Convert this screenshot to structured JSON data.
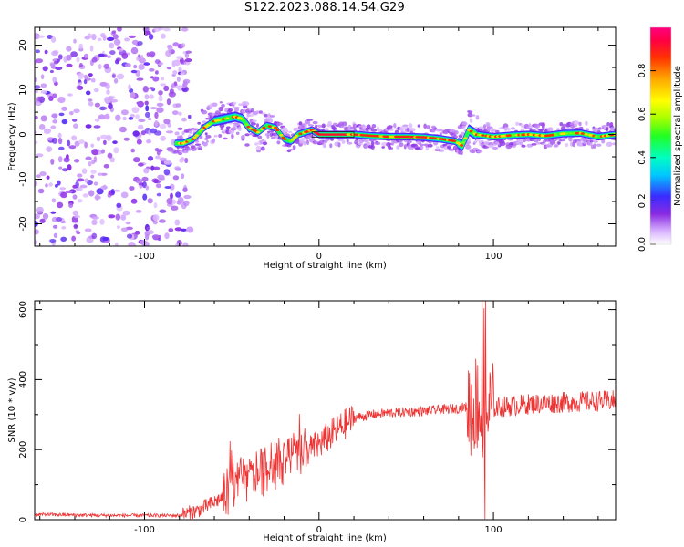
{
  "title": "S122.2023.088.14.54.G29",
  "chart_data": [
    {
      "type": "heatmap",
      "xlabel": "Height of straight line (km)",
      "ylabel": "Frequency (Hz)",
      "xlim": [
        -163,
        170
      ],
      "ylim": [
        -25,
        24
      ],
      "xticks": [
        -100,
        0,
        100
      ],
      "yticks": [
        -20,
        -10,
        0,
        10,
        20
      ],
      "colorbar": {
        "label": "Normalized spectral amplitude",
        "range": [
          0,
          1
        ],
        "ticks": [
          0.0,
          0.2,
          0.4,
          0.6,
          0.8
        ]
      },
      "noise_region_x": [
        -163,
        -78
      ],
      "ridge_frequency": [
        [
          -82,
          -2
        ],
        [
          -78,
          -2
        ],
        [
          -72,
          -1
        ],
        [
          -66,
          1.5
        ],
        [
          -60,
          3
        ],
        [
          -54,
          3.5
        ],
        [
          -48,
          4
        ],
        [
          -44,
          3.5
        ],
        [
          -40,
          1.5
        ],
        [
          -35,
          0.5
        ],
        [
          -30,
          2
        ],
        [
          -25,
          1.5
        ],
        [
          -20,
          -1
        ],
        [
          -16,
          -1.5
        ],
        [
          -12,
          0
        ],
        [
          -8,
          0.5
        ],
        [
          -4,
          1
        ],
        [
          0,
          0
        ],
        [
          10,
          0
        ],
        [
          20,
          0
        ],
        [
          30,
          -0.3
        ],
        [
          40,
          -0.5
        ],
        [
          50,
          -0.5
        ],
        [
          60,
          -0.6
        ],
        [
          70,
          -1
        ],
        [
          78,
          -1.5
        ],
        [
          82,
          -2.5
        ],
        [
          86,
          1
        ],
        [
          90,
          0
        ],
        [
          100,
          -0.5
        ],
        [
          110,
          -0.2
        ],
        [
          120,
          0
        ],
        [
          130,
          -0.3
        ],
        [
          140,
          0.2
        ],
        [
          150,
          0.3
        ],
        [
          160,
          -0.5
        ],
        [
          170,
          0
        ]
      ]
    },
    {
      "type": "line",
      "xlabel": "Height of straight line (km)",
      "ylabel": "SNR (10 * v/v)",
      "xlim": [
        -163,
        170
      ],
      "ylim": [
        0,
        625
      ],
      "xticks": [
        -100,
        0,
        100
      ],
      "yticks": [
        0,
        200,
        400,
        600
      ],
      "color": "#ee3333",
      "trend": [
        [
          -163,
          15
        ],
        [
          -120,
          12
        ],
        [
          -80,
          12
        ],
        [
          -70,
          25
        ],
        [
          -60,
          50
        ],
        [
          -50,
          80
        ],
        [
          -40,
          110
        ],
        [
          -30,
          130
        ],
        [
          -20,
          160
        ],
        [
          -10,
          185
        ],
        [
          0,
          215
        ],
        [
          10,
          255
        ],
        [
          20,
          290
        ],
        [
          30,
          300
        ],
        [
          40,
          305
        ],
        [
          60,
          310
        ],
        [
          80,
          318
        ],
        [
          88,
          325
        ],
        [
          92,
          340
        ],
        [
          96,
          300
        ],
        [
          100,
          320
        ],
        [
          120,
          330
        ],
        [
          140,
          335
        ],
        [
          170,
          340
        ]
      ]
    }
  ]
}
